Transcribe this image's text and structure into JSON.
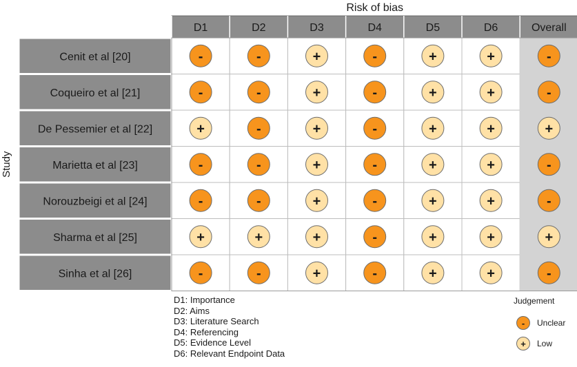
{
  "chart_data": {
    "type": "table",
    "title": "Risk of bias",
    "row_axis_label": "Study",
    "columns": [
      "D1",
      "D2",
      "D3",
      "D4",
      "D5",
      "D6",
      "Overall"
    ],
    "studies": [
      "Cenit et al [20]",
      "Coqueiro et al [21]",
      "De Pessemier et al [22]",
      "Marietta et al [23]",
      "Norouzbeigi et al [24]",
      "Sharma et al [25]",
      "Sinha et al [26]"
    ],
    "judgements": [
      [
        "-",
        "-",
        "+",
        "-",
        "+",
        "+",
        "-"
      ],
      [
        "-",
        "-",
        "+",
        "-",
        "+",
        "+",
        "-"
      ],
      [
        "+",
        "-",
        "+",
        "-",
        "+",
        "+",
        "+"
      ],
      [
        "-",
        "-",
        "+",
        "-",
        "+",
        "+",
        "-"
      ],
      [
        "-",
        "-",
        "+",
        "-",
        "+",
        "+",
        "-"
      ],
      [
        "+",
        "+",
        "+",
        "-",
        "+",
        "+",
        "+"
      ],
      [
        "-",
        "-",
        "+",
        "-",
        "+",
        "+",
        "-"
      ]
    ],
    "domain_legend": [
      "D1: Importance",
      "D2: Aims",
      "D3: Literature Search",
      "D4: Referencing",
      "D5: Evidence Level",
      "D6: Relevant Endpoint Data"
    ],
    "judgement_legend": {
      "title": "Judgement",
      "items": [
        {
          "symbol": "-",
          "label": "Unclear",
          "color": "#f7941d"
        },
        {
          "symbol": "+",
          "label": "Low",
          "color": "#ffe1a6"
        }
      ]
    }
  },
  "colors": {
    "header_bg": "#8c8c8c",
    "study_bg": "#8c8c8c",
    "overall_bg": "#d3d3d3",
    "cell_bg": "#ffffff",
    "grid_line": "#666666",
    "unclear": "#f7941d",
    "low": "#ffe1a6"
  }
}
